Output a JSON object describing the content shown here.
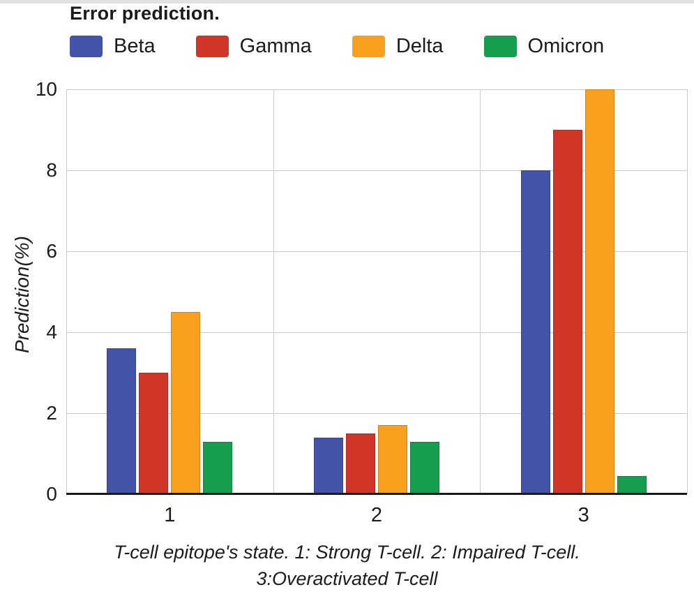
{
  "figure": {
    "title": "Error prediction.",
    "y_axis_title": "Prediction(%)",
    "caption_line1": "T-cell epitope's state. 1: Strong T-cell. 2: Impaired T-cell.",
    "caption_line2": "3:Overactivated T-cell"
  },
  "chart_data": {
    "type": "bar",
    "title": "Error prediction.",
    "xlabel": "T-cell epitope's state. 1: Strong T-cell. 2: Impaired T-cell. 3:Overactivated T-cell",
    "ylabel": "Prediction(%)",
    "categories": [
      "1",
      "2",
      "3"
    ],
    "series": [
      {
        "name": "Beta",
        "color": "#4353a8",
        "values": [
          3.6,
          1.4,
          8.0
        ]
      },
      {
        "name": "Gamma",
        "color": "#d13528",
        "values": [
          3.0,
          1.5,
          9.0
        ]
      },
      {
        "name": "Delta",
        "color": "#f9a11f",
        "values": [
          4.5,
          1.7,
          10.0
        ]
      },
      {
        "name": "Omicron",
        "color": "#169e4e",
        "values": [
          1.3,
          1.3,
          0.45
        ]
      }
    ],
    "ylim": [
      0,
      10
    ],
    "yticks": [
      0,
      2,
      4,
      6,
      8,
      10
    ],
    "grid": true,
    "legend_position": "top"
  }
}
